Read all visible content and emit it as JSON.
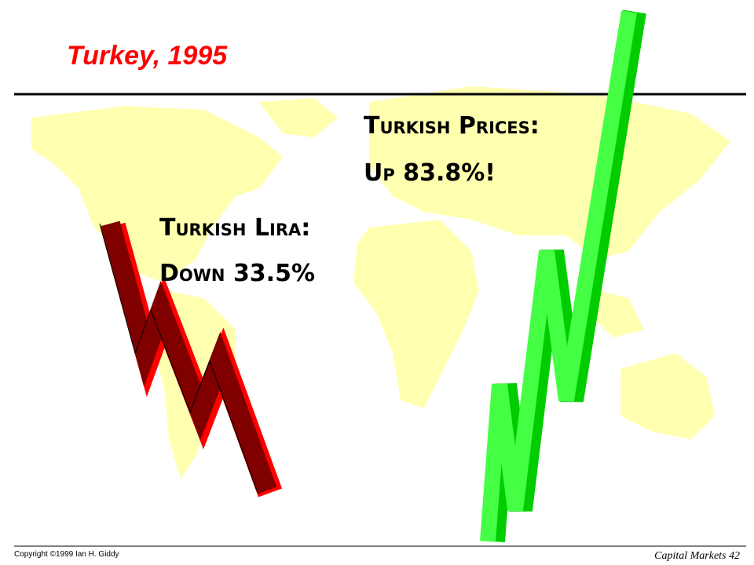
{
  "header": {
    "title": "Turkey, 1995"
  },
  "callouts": [
    {
      "heading": "Turkish Prices:",
      "detail": "Up 83.8%!"
    },
    {
      "heading": "Turkish Lira:",
      "detail": "Down 33.5%"
    }
  ],
  "footer": {
    "copyright": "Copyright ©1999 Ian H. Giddy",
    "course": "Capital Markets 42"
  }
}
